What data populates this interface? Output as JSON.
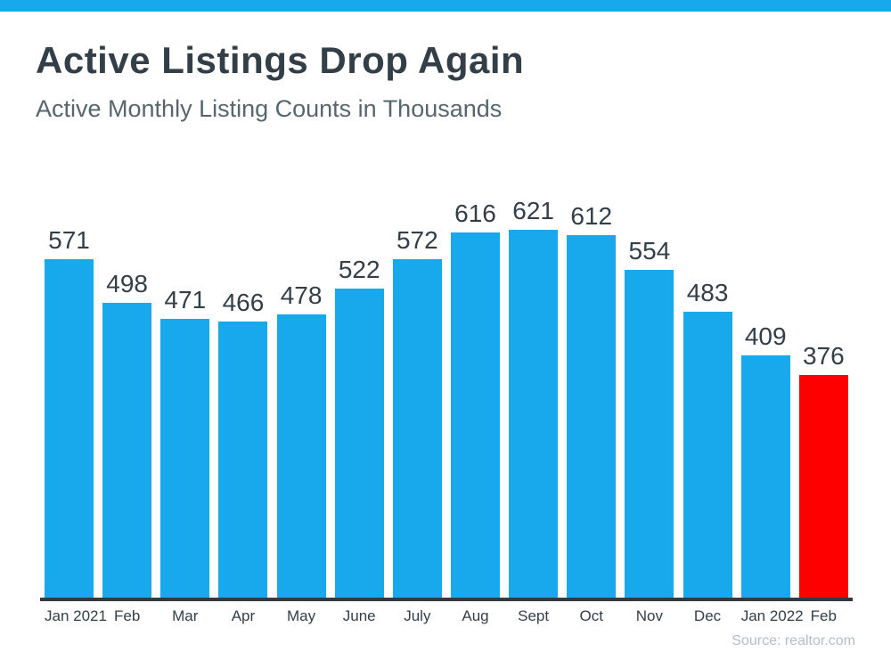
{
  "chart_data": {
    "type": "bar",
    "title": "Active Listings Drop Again",
    "subtitle": "Active Monthly Listing Counts in Thousands",
    "source": "Source: realtor.com",
    "categories": [
      "Jan 2021",
      "Feb",
      "Mar",
      "Apr",
      "May",
      "June",
      "July",
      "Aug",
      "Sept",
      "Oct",
      "Nov",
      "Dec",
      "Jan 2022",
      "Feb"
    ],
    "values": [
      571,
      498,
      471,
      466,
      478,
      522,
      572,
      616,
      621,
      612,
      554,
      483,
      409,
      376
    ],
    "bar_color": "#18A9EC",
    "highlight_color": "#FF0000",
    "highlight_index": 13,
    "xlabel": "",
    "ylabel": "",
    "grid": false,
    "legend": false,
    "y_axis_shown": false
  },
  "colors": {
    "accent_strip": "#18A9EC",
    "axis_line": "#333A40",
    "title_text": "#333F48",
    "subtitle_text": "#56666F",
    "label_text": "#333F48",
    "source_text": "#B3BEC8"
  }
}
